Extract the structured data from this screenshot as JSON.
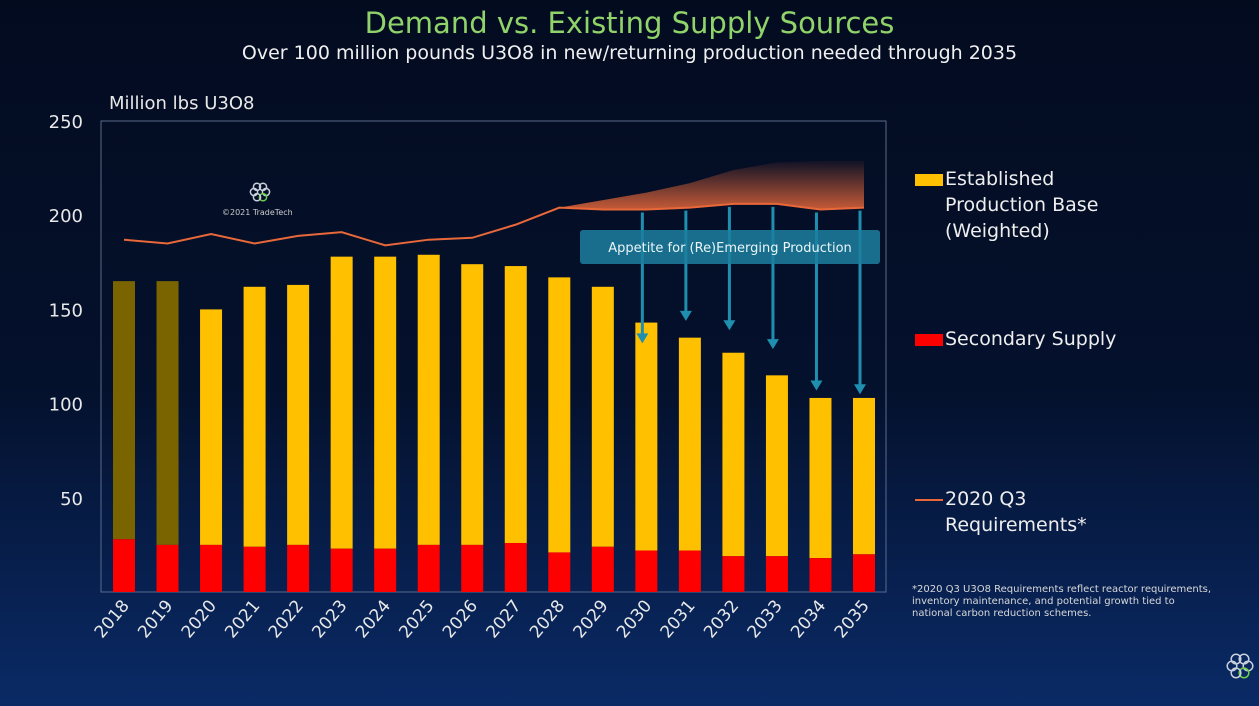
{
  "chart_data": {
    "type": "bar",
    "title": "Demand vs. Existing Supply Sources",
    "subtitle": "Over 100 million pounds U3O8 in new/returning production needed through 2035",
    "ylabel": "Million lbs U3O8",
    "ylim": [
      0,
      250
    ],
    "yticks": [
      "250",
      "200",
      "150",
      "100",
      "50"
    ],
    "categories": [
      "2018",
      "2019",
      "2020",
      "2021",
      "2022",
      "2023",
      "2024",
      "2025",
      "2026",
      "2027",
      "2028",
      "2029",
      "2030",
      "2031",
      "2032",
      "2033",
      "2034",
      "2035"
    ],
    "stacked": true,
    "series": [
      {
        "name": "Secondary Supply",
        "color": "#ff0000",
        "values": [
          28,
          25,
          25,
          24,
          25,
          23,
          23,
          25,
          25,
          26,
          21,
          24,
          22,
          22,
          19,
          19,
          18,
          20
        ]
      },
      {
        "name": "Established Production Base (Weighted)",
        "color": "#ffc000",
        "historical_color": "#7a6400",
        "totals": [
          165,
          165,
          150,
          162,
          163,
          178,
          178,
          179,
          174,
          173,
          167,
          162,
          143,
          135,
          127,
          115,
          103,
          103
        ]
      },
      {
        "name": "2020 Q3 Requirements*",
        "type": "line",
        "color": "#e8683a",
        "values": [
          187,
          185,
          190,
          185,
          189,
          191,
          184,
          187,
          188,
          195,
          204,
          203,
          203,
          204,
          206,
          206,
          203,
          204
        ]
      }
    ],
    "upper_band": {
      "from": "2028",
      "values": [
        204,
        208,
        212,
        217,
        224,
        228,
        229,
        229
      ]
    },
    "annotation": "Appetite for (Re)Emerging Production",
    "watermark": "©2021 TradeTech",
    "grid": false,
    "legend_position": "right"
  },
  "legend": {
    "established": [
      "Established",
      "Production Base",
      "(Weighted)"
    ],
    "secondary": "Secondary Supply",
    "requirements": [
      "2020 Q3",
      "Requirements*"
    ]
  },
  "footnote": "*2020 Q3 U3O8 Requirements reflect reactor requirements, inventory maintenance, and potential growth tied to national carbon reduction schemes."
}
